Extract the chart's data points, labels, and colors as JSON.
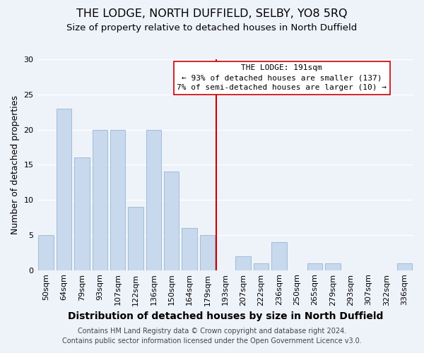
{
  "title": "THE LODGE, NORTH DUFFIELD, SELBY, YO8 5RQ",
  "subtitle": "Size of property relative to detached houses in North Duffield",
  "xlabel": "Distribution of detached houses by size in North Duffield",
  "ylabel": "Number of detached properties",
  "bar_labels": [
    "50sqm",
    "64sqm",
    "79sqm",
    "93sqm",
    "107sqm",
    "122sqm",
    "136sqm",
    "150sqm",
    "164sqm",
    "179sqm",
    "193sqm",
    "207sqm",
    "222sqm",
    "236sqm",
    "250sqm",
    "265sqm",
    "279sqm",
    "293sqm",
    "307sqm",
    "322sqm",
    "336sqm"
  ],
  "bar_values": [
    5,
    23,
    16,
    20,
    20,
    9,
    20,
    14,
    6,
    5,
    0,
    2,
    1,
    4,
    0,
    1,
    1,
    0,
    0,
    0,
    1
  ],
  "bar_color": "#c8d9ed",
  "bar_edge_color": "#a0bcd8",
  "vline_color": "#cc0000",
  "vline_pos": 9.5,
  "ylim": [
    0,
    30
  ],
  "yticks": [
    0,
    5,
    10,
    15,
    20,
    25,
    30
  ],
  "legend_title": "THE LODGE: 191sqm",
  "legend_line1": "← 93% of detached houses are smaller (137)",
  "legend_line2": "7% of semi-detached houses are larger (10) →",
  "legend_box_color": "#ffffff",
  "legend_box_edge": "#cc0000",
  "footer_line1": "Contains HM Land Registry data © Crown copyright and database right 2024.",
  "footer_line2": "Contains public sector information licensed under the Open Government Licence v3.0.",
  "background_color": "#eef2f9",
  "grid_color": "#ffffff",
  "title_fontsize": 11.5,
  "subtitle_fontsize": 9.5,
  "xlabel_fontsize": 10,
  "ylabel_fontsize": 9,
  "tick_fontsize": 8,
  "footer_fontsize": 7,
  "legend_fontsize": 8
}
